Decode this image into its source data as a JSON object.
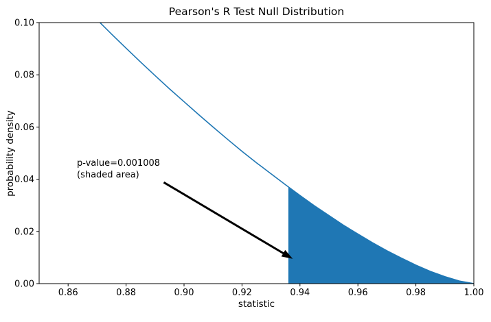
{
  "figure": {
    "title": "Pearson's R Test Null Distribution",
    "xlabel": "statistic",
    "ylabel": "probability density",
    "annotation_line1": "p-value=0.001008",
    "annotation_line2": "(shaded area)"
  },
  "chart_data": {
    "type": "area",
    "title": "Pearson's R Test Null Distribution",
    "xlabel": "statistic",
    "ylabel": "probability density",
    "xlim": [
      0.85,
      1.0
    ],
    "ylim": [
      0.0,
      0.1
    ],
    "xticks": [
      0.86,
      0.88,
      0.9,
      0.92,
      0.94,
      0.96,
      0.98,
      1.0
    ],
    "xtick_labels": [
      "0.86",
      "0.88",
      "0.90",
      "0.92",
      "0.94",
      "0.96",
      "0.98",
      "1.00"
    ],
    "yticks": [
      0.0,
      0.02,
      0.04,
      0.06,
      0.08,
      0.1
    ],
    "ytick_labels": [
      "0.00",
      "0.02",
      "0.04",
      "0.06",
      "0.08",
      "0.10"
    ],
    "grid": false,
    "line_color": "#1f77b4",
    "fill_color": "#1f77b4",
    "p_value": 0.001008,
    "observed_statistic": 0.936,
    "shade_from": 0.936,
    "annotation": {
      "text": "p-value=0.001008\n(shaded area)",
      "text_xy": [
        0.863,
        0.046
      ],
      "arrow_start": [
        0.893,
        0.0388
      ],
      "arrow_end": [
        0.9375,
        0.0095
      ],
      "arrow_color": "#000000"
    },
    "curve": {
      "x": [
        0.85,
        0.855,
        0.86,
        0.865,
        0.87,
        0.875,
        0.88,
        0.885,
        0.89,
        0.895,
        0.9,
        0.905,
        0.91,
        0.915,
        0.92,
        0.925,
        0.93,
        0.935,
        0.94,
        0.945,
        0.95,
        0.955,
        0.96,
        0.965,
        0.97,
        0.975,
        0.98,
        0.985,
        0.99,
        0.995,
        1.0
      ],
      "y": [
        0.1239,
        0.118,
        0.1123,
        0.1067,
        0.1011,
        0.0956,
        0.0902,
        0.0849,
        0.0797,
        0.0746,
        0.0697,
        0.0648,
        0.06,
        0.0553,
        0.0507,
        0.0463,
        0.0421,
        0.0379,
        0.0338,
        0.0298,
        0.0261,
        0.0224,
        0.019,
        0.0157,
        0.0126,
        0.0098,
        0.0071,
        0.0047,
        0.0027,
        0.001,
        0.0
      ]
    }
  }
}
